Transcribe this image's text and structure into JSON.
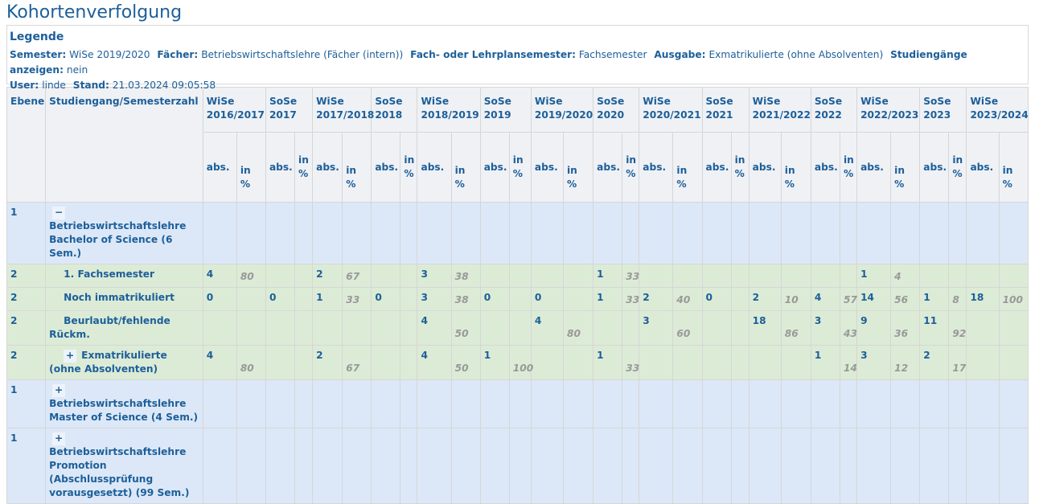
{
  "title": "Kohortenverfolgung",
  "legend": {
    "heading": "Legende",
    "items": [
      {
        "label": "Semester:",
        "value": "WiSe 2019/2020"
      },
      {
        "label": "Fächer:",
        "value": "Betriebswirtschaftslehre (Fächer (intern))"
      },
      {
        "label": "Fach- oder Lehrplansemester:",
        "value": "Fachsemester"
      },
      {
        "label": "Ausgabe:",
        "value": "Exmatrikulierte (ohne Absolventen)"
      },
      {
        "label": "Studiengänge anzeigen:",
        "value": "nein"
      }
    ],
    "items2": [
      {
        "label": "User:",
        "value": "linde"
      },
      {
        "label": "Stand:",
        "value": "21.03.2024 09:05:58"
      }
    ]
  },
  "table": {
    "col_ebene": "Ebene",
    "col_name": "Studiengang/Semesterzahl",
    "abs_label": "abs.",
    "pct_label": "in %",
    "semesters": [
      [
        "WiSe",
        "2016/2017"
      ],
      [
        "SoSe",
        "2017"
      ],
      [
        "WiSe",
        "2017/2018"
      ],
      [
        "SoSe",
        "2018"
      ],
      [
        "WiSe",
        "2018/2019"
      ],
      [
        "SoSe",
        "2019"
      ],
      [
        "WiSe",
        "2019/2020"
      ],
      [
        "SoSe",
        "2020"
      ],
      [
        "WiSe",
        "2020/2021"
      ],
      [
        "SoSe",
        "2021"
      ],
      [
        "WiSe",
        "2021/2022"
      ],
      [
        "SoSe",
        "2022"
      ],
      [
        "WiSe",
        "2022/2023"
      ],
      [
        "SoSe",
        "2023"
      ],
      [
        "WiSe",
        "2023/2024"
      ]
    ],
    "rows": [
      {
        "ebene": "1",
        "toggle": "−",
        "name": "Betriebswirtschaftslehre Bachelor of Science (6 Sem.)",
        "indent": 0,
        "level": 1,
        "cells": []
      },
      {
        "ebene": "2",
        "toggle": "",
        "name": "1. Fachsemester",
        "indent": 1,
        "level": 2,
        "cells": [
          [
            "4",
            "80"
          ],
          [
            "",
            ""
          ],
          [
            "2",
            "67"
          ],
          [
            "",
            ""
          ],
          [
            "3",
            "38"
          ],
          [
            "",
            ""
          ],
          [
            "",
            ""
          ],
          [
            "1",
            "33"
          ],
          [
            "",
            ""
          ],
          [
            "",
            ""
          ],
          [
            "",
            ""
          ],
          [
            "",
            ""
          ],
          [
            "1",
            "4"
          ],
          [
            "",
            ""
          ],
          [
            "",
            ""
          ]
        ]
      },
      {
        "ebene": "2",
        "toggle": "",
        "name": "Noch immatrikuliert",
        "indent": 1,
        "level": 2,
        "cells": [
          [
            "0",
            ""
          ],
          [
            "0",
            ""
          ],
          [
            "1",
            "33"
          ],
          [
            "0",
            ""
          ],
          [
            "3",
            "38"
          ],
          [
            "0",
            ""
          ],
          [
            "0",
            ""
          ],
          [
            "1",
            "33"
          ],
          [
            "2",
            "40"
          ],
          [
            "0",
            ""
          ],
          [
            "2",
            "10"
          ],
          [
            "4",
            "57"
          ],
          [
            "14",
            "56"
          ],
          [
            "1",
            "8"
          ],
          [
            "18",
            "100"
          ]
        ]
      },
      {
        "ebene": "2",
        "toggle": "",
        "name": "Beurlaubt/fehlende Rückm.",
        "indent": 1,
        "level": 2,
        "tall": true,
        "cells": [
          [
            "",
            ""
          ],
          [
            "",
            ""
          ],
          [
            "",
            ""
          ],
          [
            "",
            ""
          ],
          [
            "4",
            "50"
          ],
          [
            "",
            ""
          ],
          [
            "4",
            "80"
          ],
          [
            "",
            ""
          ],
          [
            "3",
            "60"
          ],
          [
            "",
            ""
          ],
          [
            "18",
            "86"
          ],
          [
            "3",
            "43"
          ],
          [
            "9",
            "36"
          ],
          [
            "11",
            "92"
          ],
          [
            "",
            ""
          ]
        ]
      },
      {
        "ebene": "2",
        "toggle": "+",
        "name": "Exmatrikulierte (ohne Absolventen)",
        "indent": 1,
        "level": 2,
        "tall": true,
        "cells": [
          [
            "4",
            "80"
          ],
          [
            "",
            ""
          ],
          [
            "2",
            "67"
          ],
          [
            "",
            ""
          ],
          [
            "4",
            "50"
          ],
          [
            "1",
            "100"
          ],
          [
            "",
            ""
          ],
          [
            "1",
            "33"
          ],
          [
            "",
            ""
          ],
          [
            "",
            ""
          ],
          [
            "",
            ""
          ],
          [
            "1",
            "14"
          ],
          [
            "3",
            "12"
          ],
          [
            "2",
            "17"
          ],
          [
            "",
            ""
          ]
        ]
      },
      {
        "ebene": "1",
        "toggle": "+",
        "name": "Betriebswirtschaftslehre Master of Science (4 Sem.)",
        "indent": 0,
        "level": 1,
        "cells": []
      },
      {
        "ebene": "1",
        "toggle": "+",
        "name": "Betriebswirtschaftslehre Promotion (Abschlussprüfung vorausgesetzt) (99 Sem.)",
        "indent": 0,
        "level": 1,
        "cells": []
      }
    ]
  },
  "colors": {
    "text": "#1d5f99",
    "level1": "#dce8f8",
    "level2": "#dcebd6",
    "header": "#eff1f5"
  }
}
